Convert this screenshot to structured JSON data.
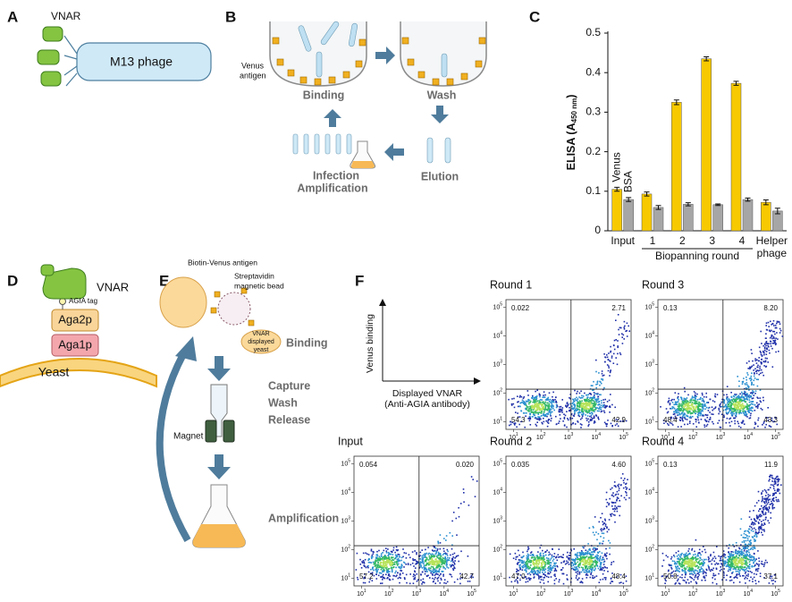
{
  "panel_labels": [
    "A",
    "B",
    "C",
    "D",
    "E",
    "F"
  ],
  "panel_a": {
    "vnar": "VNAR",
    "phage": "M13 phage"
  },
  "panel_b": {
    "antigen": [
      "Venus",
      "antigen"
    ],
    "steps": [
      "Binding",
      "Wash",
      "Elution"
    ],
    "infection": [
      "Infection",
      "Amplification"
    ]
  },
  "chart_data": {
    "type": "bar",
    "y_label": [
      "ELISA (A",
      "450 nm",
      ")"
    ],
    "categories": [
      "Input",
      "1",
      "2",
      "3",
      "4",
      "Helper phage"
    ],
    "group_label": "Biopanning round",
    "series": [
      {
        "name": "Venus",
        "color": "#f7c900",
        "values": [
          0.105,
          0.093,
          0.325,
          0.435,
          0.373,
          0.072
        ],
        "errors": [
          0.005,
          0.005,
          0.006,
          0.005,
          0.005,
          0.006
        ]
      },
      {
        "name": "BSA",
        "color": "#a6a6a6",
        "values": [
          0.079,
          0.059,
          0.067,
          0.066,
          0.079,
          0.05
        ],
        "errors": [
          0.005,
          0.005,
          0.004,
          0.002,
          0.004,
          0.007
        ]
      }
    ],
    "ylim": [
      0,
      0.5
    ],
    "yticks": [
      0,
      0.1,
      0.2,
      0.3,
      0.4,
      0.5
    ]
  },
  "panel_d": {
    "vnar": "VNAR",
    "tag": "AGIA tag",
    "aga2p": "Aga2p",
    "aga1p": "Aga1p",
    "yeast": "Yeast"
  },
  "panel_e": {
    "antigen": "Biotin-Venus antigen",
    "bead": [
      "Streptavidin",
      "magnetic bead"
    ],
    "yeast": [
      "VNAR",
      "displayed",
      "yeast"
    ],
    "binding": "Binding",
    "steps": [
      "Capture",
      "Wash",
      "Release"
    ],
    "magnet": "Magnet",
    "amplification": "Amplification"
  },
  "panel_f": {
    "y_axis": "Venus binding",
    "x_axis": [
      "Displayed VNAR",
      "(Anti-AGIA antibody)"
    ],
    "tick_base": "10",
    "x_exponents": [
      "1",
      "2",
      "3",
      "4",
      "5"
    ],
    "y_exponents": [
      "1",
      "2",
      "3",
      "4",
      "5"
    ],
    "plots": [
      {
        "title": "Round 1",
        "quadrants": [
          "0.022",
          "2.71",
          "54.3",
          "42.9"
        ]
      },
      {
        "title": "Round 3",
        "quadrants": [
          "0.13",
          "8.20",
          "48.4",
          "43.3"
        ]
      },
      {
        "title": "Input",
        "quadrants": [
          "0.054",
          "0.020",
          "57.2",
          "42.7"
        ]
      },
      {
        "title": "Round 2",
        "quadrants": [
          "0.035",
          "4.60",
          "47.0",
          "48.4"
        ]
      },
      {
        "title": "Round 4",
        "quadrants": [
          "0.13",
          "11.9",
          "50.8",
          "37.1"
        ]
      }
    ]
  }
}
